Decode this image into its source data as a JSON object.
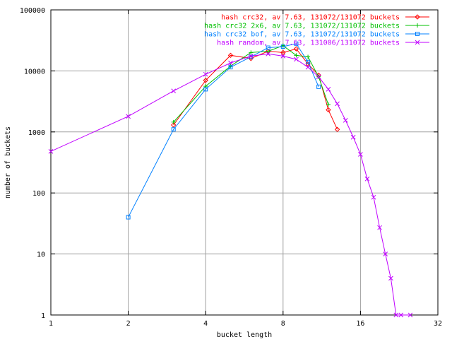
{
  "chart_data": {
    "type": "line",
    "title": "",
    "xlabel": "bucket length",
    "ylabel": "number of buckets",
    "x_scale": "log2",
    "y_scale": "log10",
    "xlim": [
      1,
      32
    ],
    "ylim": [
      1,
      100000
    ],
    "grid": true,
    "legend_position": "top-right",
    "x_ticks": [
      {
        "value": 1,
        "label": "1"
      },
      {
        "value": 2,
        "label": "2"
      },
      {
        "value": 4,
        "label": "4"
      },
      {
        "value": 8,
        "label": "8"
      },
      {
        "value": 16,
        "label": "16"
      },
      {
        "value": 32,
        "label": "32"
      }
    ],
    "y_ticks": [
      {
        "value": 1,
        "label": "1"
      },
      {
        "value": 10,
        "label": "10"
      },
      {
        "value": 100,
        "label": "100"
      },
      {
        "value": 1000,
        "label": "1000"
      },
      {
        "value": 10000,
        "label": "10000"
      },
      {
        "value": 100000,
        "label": "100000"
      }
    ],
    "series": [
      {
        "name": "hash crc32, av 7.63, 131072/131072 buckets",
        "color": "#ff0000",
        "marker": "diamond",
        "points": [
          [
            3,
            1300
          ],
          [
            4,
            7000
          ],
          [
            5,
            18000
          ],
          [
            6,
            16000
          ],
          [
            7,
            21000
          ],
          [
            8,
            20000
          ],
          [
            9,
            23000
          ],
          [
            10,
            13000
          ],
          [
            11,
            8500
          ],
          [
            12,
            2300
          ],
          [
            13,
            1100
          ]
        ]
      },
      {
        "name": "hash crc32 2x6, av 7.63, 131072/131072 buckets",
        "color": "#00c000",
        "marker": "plus",
        "points": [
          [
            3,
            1450
          ],
          [
            4,
            5600
          ],
          [
            5,
            12000
          ],
          [
            6,
            20000
          ],
          [
            7,
            21000
          ],
          [
            8,
            26000
          ],
          [
            9,
            18000
          ],
          [
            10,
            17000
          ],
          [
            11,
            8000
          ],
          [
            12,
            2800
          ]
        ]
      },
      {
        "name": "hash crc32 bof, av 7.63, 131072/131072 buckets",
        "color": "#0080ff",
        "marker": "square",
        "points": [
          [
            2,
            40
          ],
          [
            3,
            1100
          ],
          [
            4,
            5000
          ],
          [
            5,
            11500
          ],
          [
            6,
            17000
          ],
          [
            7,
            24000
          ],
          [
            8,
            25000
          ],
          [
            9,
            28000
          ],
          [
            10,
            14000
          ],
          [
            11,
            5500
          ]
        ]
      },
      {
        "name": "hash random, av 7.63, 131006/131072 buckets",
        "color": "#c000ff",
        "marker": "x",
        "points": [
          [
            1,
            480
          ],
          [
            2,
            1800
          ],
          [
            3,
            4700
          ],
          [
            4,
            8800
          ],
          [
            5,
            13500
          ],
          [
            6,
            17500
          ],
          [
            7,
            19000
          ],
          [
            8,
            17500
          ],
          [
            9,
            15500
          ],
          [
            10,
            11500
          ],
          [
            11,
            8000
          ],
          [
            12,
            5000
          ],
          [
            13,
            2900
          ],
          [
            14,
            1550
          ],
          [
            15,
            820
          ],
          [
            16,
            430
          ],
          [
            17,
            170
          ],
          [
            18,
            85
          ],
          [
            19,
            27
          ],
          [
            20,
            10
          ],
          [
            21,
            4
          ],
          [
            22,
            1
          ],
          [
            23,
            1
          ],
          [
            25,
            1
          ]
        ]
      }
    ]
  }
}
